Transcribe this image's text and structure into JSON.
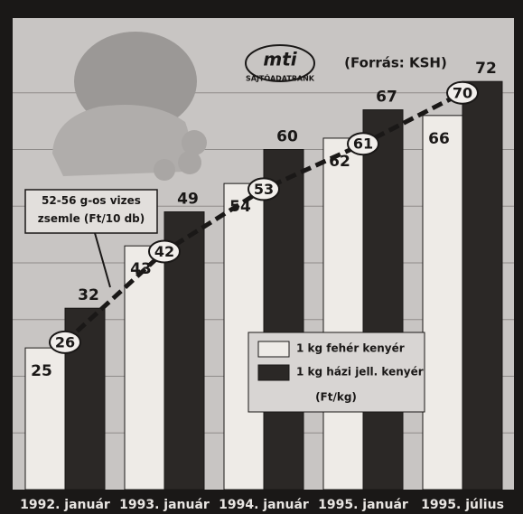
{
  "chart_data": {
    "type": "bar",
    "categories": [
      "1992. január",
      "1993. január",
      "1994. január",
      "1995. január",
      "1995. július"
    ],
    "series": [
      {
        "name": "1 kg fehér kenyér",
        "color": "#eeebe7",
        "values": [
          25,
          43,
          54,
          62,
          66
        ]
      },
      {
        "name": "1 kg házi jell. kenyér",
        "color": "#2b2826",
        "values": [
          32,
          49,
          60,
          67,
          72
        ]
      }
    ],
    "line": {
      "name": "52-56 g-os vizes zsemle (Ft/10 db)",
      "color": "#1a1817",
      "values": [
        26,
        42,
        53,
        61,
        70
      ]
    },
    "legend_note": "(Ft/kg)",
    "source": "(Forrás: KSH)",
    "logo": {
      "text": "mti",
      "subtitle": "SAJTÓADATBANK"
    },
    "ylim": [
      0,
      80
    ],
    "yticks": [
      10,
      20,
      30,
      40,
      50,
      60,
      70
    ],
    "grid": true
  }
}
